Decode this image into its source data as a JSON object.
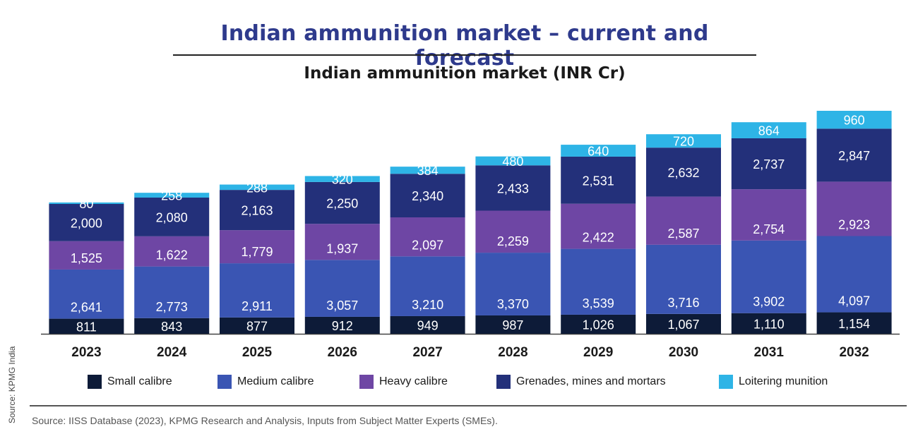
{
  "header": {
    "title": "Indian ammunition market – current and forecast",
    "subtitle": "Indian ammunition market (INR Cr)"
  },
  "footer": {
    "source": "Source: IISS Database (2023), KPMG Research and Analysis, Inputs from Subject Matter Experts (SMEs).",
    "side_credit": "Source: KPMG India"
  },
  "colors": {
    "small": "#0d1b38",
    "medium": "#3a55b3",
    "heavy": "#6e46a4",
    "grenades": "#23307a",
    "loitering": "#2eb4e6"
  },
  "chart_data": {
    "type": "bar",
    "stacked": true,
    "title": "Indian ammunition market (INR Cr)",
    "categories": [
      "2023",
      "2024",
      "2025",
      "2026",
      "2027",
      "2028",
      "2029",
      "2030",
      "2031",
      "2032"
    ],
    "series": [
      {
        "name": "Small calibre",
        "color": "#0d1b38",
        "values": [
          811,
          843,
          877,
          912,
          949,
          987,
          1026,
          1067,
          1110,
          1154
        ],
        "labels": [
          "811",
          "843",
          "877",
          "912",
          "949",
          "987",
          "1,026",
          "1,067",
          "1,110",
          "1,154"
        ]
      },
      {
        "name": "Medium calibre",
        "color": "#3a55b3",
        "values": [
          2641,
          2773,
          2911,
          3057,
          3210,
          3370,
          3539,
          3716,
          3902,
          4097
        ],
        "labels": [
          "2,641",
          "2,773",
          "2,911",
          "3,057",
          "3,210",
          "3,370",
          "3,539",
          "3,716",
          "3,902",
          "4,097"
        ]
      },
      {
        "name": "Heavy calibre",
        "color": "#6e46a4",
        "values": [
          1525,
          1622,
          1779,
          1937,
          2097,
          2259,
          2422,
          2587,
          2754,
          2923
        ],
        "labels": [
          "1,525",
          "1,622",
          "1,779",
          "1,937",
          "2,097",
          "2,259",
          "2,422",
          "2,587",
          "2,754",
          "2,923"
        ]
      },
      {
        "name": "Grenades, mines and mortars",
        "color": "#23307a",
        "values": [
          2000,
          2080,
          2163,
          2250,
          2340,
          2433,
          2531,
          2632,
          2737,
          2847
        ],
        "labels": [
          "2,000",
          "2,080",
          "2,163",
          "2,250",
          "2,340",
          "2,433",
          "2,531",
          "2,632",
          "2,737",
          "2,847"
        ]
      },
      {
        "name": "Loitering munition",
        "color": "#2eb4e6",
        "values": [
          80,
          258,
          288,
          320,
          384,
          480,
          640,
          720,
          864,
          960
        ],
        "labels": [
          "80",
          "258",
          "288",
          "320",
          "384",
          "480",
          "640",
          "720",
          "864",
          "960"
        ]
      }
    ],
    "legend_position": "bottom",
    "grid": false
  }
}
